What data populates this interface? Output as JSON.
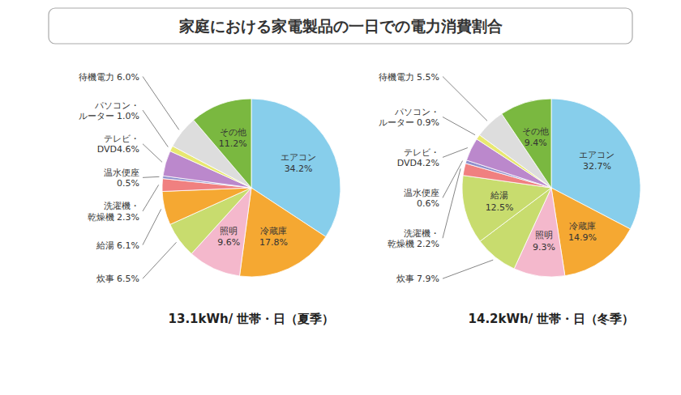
{
  "chart_data": [
    {
      "type": "pie",
      "title": "家庭における家電製品の一日での電力消費割合",
      "subtitle": "13.1kWh/ 世帯・日（夏季）",
      "categories": [
        "エアコン\n34.2%",
        "冷蔵庫\n17.8%",
        "照明\n9.6%",
        "炊事 6.5%",
        "給湯 6.1%",
        "洗濯機・\n乾燥機 2.3%",
        "温水便座\n0.5%",
        "テレビ・\nDVD4.6%",
        "パソコン・\nルーター 1.0%",
        "待機電力 6.0%",
        "その他\n11.2%"
      ],
      "values": [
        34.2,
        17.8,
        9.6,
        6.5,
        6.1,
        2.3,
        0.5,
        4.6,
        1.0,
        6.0,
        11.2
      ],
      "colors": [
        "#87CEEB",
        "#F5A832",
        "#F4B8CC",
        "#C8DC6E",
        "#F5A832",
        "#F08080",
        "#9090CC",
        "#BB88CC",
        "#E8E870",
        "#DDDDDD",
        "#7AB840"
      ]
    },
    {
      "type": "pie",
      "subtitle": "14.2kWh/ 世帯・日（冬季）",
      "categories": [
        "エアコン\n32.7%",
        "冷蔵庫\n14.9%",
        "照明\n9.3%",
        "炊事 7.9%",
        "給湯\n12.5%",
        "洗濯機・\n乾燥機 2.2%",
        "温水便座\n0.6%",
        "テレビ・\nDVD4.2%",
        "パソコン・\nルーター 0.9%",
        "待機電力 5.5%",
        "その他\n9.4%"
      ],
      "values": [
        32.7,
        14.9,
        9.3,
        7.9,
        12.5,
        2.2,
        0.6,
        4.2,
        0.9,
        5.5,
        9.4
      ],
      "colors": [
        "#87CEEB",
        "#F5A832",
        "#F4B8CC",
        "#C8DC6E",
        "#C8DC6E",
        "#F08080",
        "#9090CC",
        "#BB88CC",
        "#E8E870",
        "#DDDDDD",
        "#7AB840"
      ]
    }
  ]
}
